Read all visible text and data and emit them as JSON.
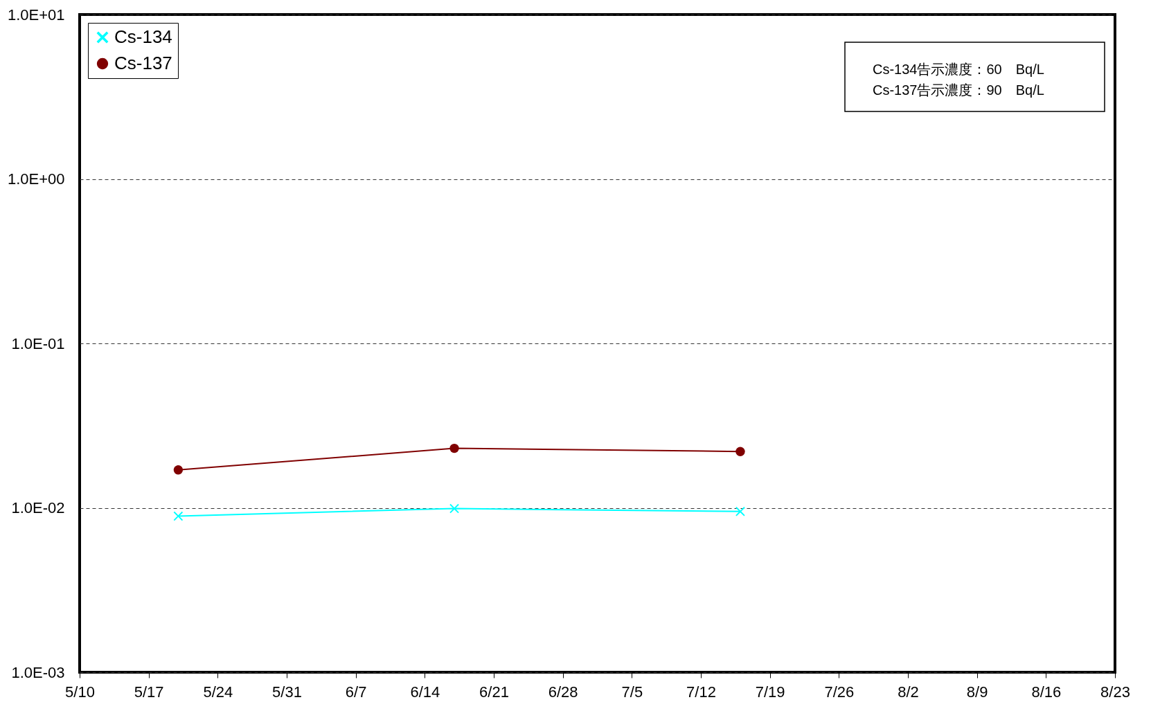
{
  "chart_data": {
    "type": "line",
    "x": [
      "--05-20",
      "--06-17",
      "--07-16"
    ],
    "series": [
      {
        "name": "Cs-134",
        "color": "#00ffff",
        "marker": "cross",
        "values": [
          0.0089,
          0.0099,
          0.0095
        ]
      },
      {
        "name": "Cs-137",
        "color": "#800000",
        "marker": "circle",
        "values": [
          0.017,
          0.023,
          0.022
        ]
      }
    ],
    "log": "y",
    "ylim": [
      0.001,
      10
    ],
    "yticks": [
      {
        "value": 0.001,
        "label": "1.0E-03"
      },
      {
        "value": 0.01,
        "label": "1.0E-02"
      },
      {
        "value": 0.1,
        "label": "1.0E-01"
      },
      {
        "value": 1,
        "label": "1.0E+00"
      },
      {
        "value": 10,
        "label": "1.0E+01"
      }
    ],
    "xlim": [
      "--05-10",
      "--08-23"
    ],
    "xticks": [
      {
        "value": "--05-10",
        "label": "5/10"
      },
      {
        "value": "--05-17",
        "label": "5/17"
      },
      {
        "value": "--05-24",
        "label": "5/24"
      },
      {
        "value": "--05-31",
        "label": "5/31"
      },
      {
        "value": "--06-07",
        "label": "6/7"
      },
      {
        "value": "--06-14",
        "label": "6/14"
      },
      {
        "value": "--06-21",
        "label": "6/21"
      },
      {
        "value": "--06-28",
        "label": "6/28"
      },
      {
        "value": "--07-05",
        "label": "7/5"
      },
      {
        "value": "--07-12",
        "label": "7/12"
      },
      {
        "value": "--07-19",
        "label": "7/19"
      },
      {
        "value": "--07-26",
        "label": "7/26"
      },
      {
        "value": "--08-02",
        "label": "8/2"
      },
      {
        "value": "--08-09",
        "label": "8/9"
      },
      {
        "value": "--08-16",
        "label": "8/16"
      },
      {
        "value": "--08-23",
        "label": "8/23"
      }
    ],
    "grid": "y",
    "legend": "top left",
    "annotations": [
      "Cs-134告示濃度：60　Bq/L",
      "Cs-137告示濃度：90　Bq/L"
    ]
  }
}
